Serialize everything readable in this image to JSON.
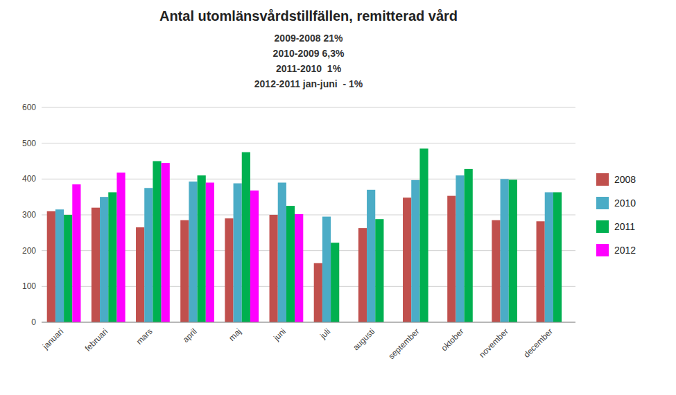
{
  "chart_data": {
    "type": "bar",
    "title": "Antal utomlänsvårdstillfällen, remitterad vård",
    "subtitle": [
      "2009-2008 21%",
      "2010-2009 6,3%",
      "2011-2010  1%",
      "2012-2011 jan-juni  - 1%"
    ],
    "categories": [
      "januari",
      "februari",
      "mars",
      "april",
      "maj",
      "juni",
      "juli",
      "augusti",
      "september",
      "oktober",
      "november",
      "december"
    ],
    "series": [
      {
        "name": "2008",
        "color": "#C0504D",
        "values": [
          310,
          320,
          265,
          285,
          290,
          300,
          165,
          263,
          348,
          353,
          285,
          282
        ]
      },
      {
        "name": "2010",
        "color": "#4BACC6",
        "values": [
          315,
          350,
          375,
          393,
          388,
          390,
          295,
          370,
          397,
          410,
          400,
          363
        ]
      },
      {
        "name": "2011",
        "color": "#00B050",
        "values": [
          300,
          363,
          450,
          410,
          475,
          325,
          222,
          288,
          485,
          428,
          398,
          363
        ]
      },
      {
        "name": "2012",
        "color": "#FF00FF",
        "values": [
          385,
          418,
          445,
          390,
          368,
          302,
          null,
          null,
          null,
          null,
          null,
          null
        ]
      }
    ],
    "ylim": [
      0,
      600
    ],
    "yticks": [
      0,
      100,
      200,
      300,
      400,
      500,
      600
    ],
    "grid": true,
    "legend": "right"
  }
}
